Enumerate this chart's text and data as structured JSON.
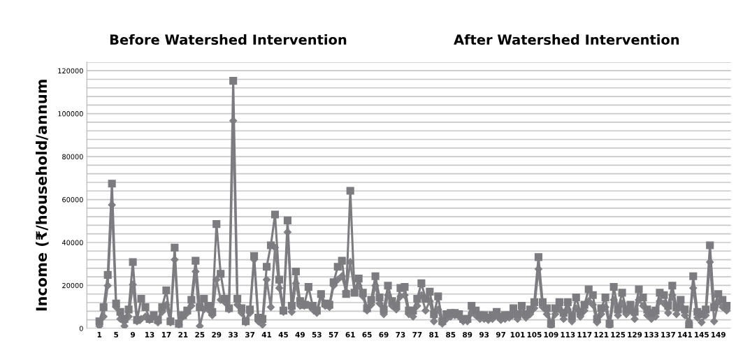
{
  "chart_data": {
    "type": "line",
    "annotations": [
      "Before Watershed Intervention",
      "After Watershed Intervention"
    ],
    "ylabel": "Income (₹/household/annum",
    "categories": [
      "1",
      null,
      null,
      null,
      "5",
      null,
      null,
      null,
      "9",
      null,
      null,
      null,
      "13",
      null,
      null,
      null,
      "17",
      null,
      null,
      null,
      "21",
      null,
      null,
      null,
      "25",
      null,
      null,
      null,
      "29",
      null,
      null,
      null,
      "33",
      null,
      null,
      null,
      "37",
      null,
      null,
      null,
      "41",
      null,
      null,
      null,
      "45",
      null,
      null,
      null,
      "49",
      null,
      null,
      null,
      "53",
      null,
      null,
      null,
      "57",
      null,
      null,
      null,
      "61",
      null,
      null,
      null,
      "65",
      null,
      null,
      null,
      "69",
      null,
      null,
      null,
      "73",
      null,
      null,
      null,
      "77",
      null,
      null,
      null,
      "81",
      null,
      null,
      null,
      "85",
      null,
      null,
      null,
      "89",
      null,
      null,
      null,
      "93",
      null,
      null,
      null,
      "97",
      null,
      null,
      null,
      "101",
      null,
      null,
      null,
      "105",
      null,
      null,
      null,
      "109",
      null,
      null,
      null,
      "113",
      null,
      null,
      null,
      "117",
      null,
      null,
      null,
      "121",
      null,
      null,
      null,
      "125",
      null,
      null,
      null,
      "129",
      null,
      null,
      null,
      "133",
      null,
      null,
      null,
      "137",
      null,
      null,
      null,
      "141",
      null,
      null,
      null,
      "145",
      null,
      null,
      null,
      "149",
      null,
      null
    ],
    "series": [
      {
        "color": "#828286",
        "marker": "diamond",
        "values": [
          1100,
          5500,
          19900,
          57500,
          9900,
          4400,
          1100,
          5500,
          20400,
          3300,
          4400,
          5500,
          3900,
          5500,
          2800,
          7700,
          11000,
          2800,
          32000,
          1700,
          5500,
          7200,
          10500,
          26500,
          1100,
          8800,
          8800,
          6100,
          22700,
          13300,
          12200,
          8800,
          96700,
          11000,
          7200,
          2800,
          7200,
          32000,
          3300,
          1700,
          22700,
          9900,
          37600,
          18800,
          7700,
          44800,
          7700,
          21000,
          10500,
          10500,
          11000,
          8800,
          7200,
          14900,
          10500,
          9900,
          19900,
          22700,
          24300,
          17100,
          30900,
          17100,
          19900,
          14900,
          8300,
          11000,
          19900,
          11600,
          6600,
          15500,
          10500,
          8800,
          14900,
          15500,
          6600,
          5500,
          10500,
          15500,
          8300,
          12700,
          3300,
          8800,
          2200,
          4400,
          5500,
          6100,
          5500,
          3300,
          3300,
          7200,
          6100,
          4400,
          4400,
          3900,
          4400,
          6100,
          3900,
          4400,
          5000,
          6600,
          4400,
          7200,
          5000,
          6600,
          9400,
          27600,
          9900,
          6600,
          1100,
          6600,
          8800,
          4400,
          8800,
          3300,
          9400,
          5500,
          8300,
          12700,
          11000,
          2800,
          6600,
          9900,
          1100,
          13300,
          6100,
          11600,
          6600,
          8300,
          4400,
          13300,
          10500,
          6100,
          4400,
          5500,
          12700,
          11600,
          7200,
          15500,
          6600,
          9900,
          6100,
          3300,
          18800,
          5000,
          2800,
          6100,
          30900,
          3300,
          12200,
          9900,
          8300
        ]
      },
      {
        "color": "#7c7c80",
        "marker": "square",
        "values": [
          3300,
          9900,
          24900,
          67400,
          11600,
          7700,
          4400,
          8800,
          30900,
          3900,
          13800,
          9900,
          4400,
          6100,
          3900,
          9900,
          17700,
          3300,
          37600,
          2200,
          6100,
          8300,
          13300,
          31500,
          9900,
          13800,
          10500,
          7700,
          48600,
          25400,
          13800,
          9400,
          115300,
          13800,
          9400,
          3300,
          8800,
          33700,
          5000,
          4400,
          28700,
          38700,
          53000,
          22700,
          8300,
          50300,
          10500,
          26500,
          12700,
          11000,
          19300,
          10500,
          8300,
          16000,
          11600,
          11000,
          21500,
          28700,
          31500,
          16000,
          64100,
          16600,
          23200,
          16600,
          9400,
          13300,
          24300,
          14400,
          8800,
          19900,
          12700,
          10500,
          18800,
          19300,
          8300,
          8300,
          13800,
          21000,
          13800,
          17100,
          6600,
          14900,
          3300,
          6600,
          7200,
          7200,
          6600,
          4400,
          4400,
          10500,
          8300,
          6100,
          6100,
          5000,
          6100,
          7700,
          5500,
          6100,
          6100,
          9400,
          6600,
          10500,
          6600,
          8800,
          12200,
          33200,
          12200,
          9400,
          2200,
          9400,
          12200,
          7200,
          12200,
          5500,
          14400,
          7700,
          11000,
          18200,
          15500,
          4400,
          9400,
          14400,
          2200,
          19300,
          8800,
          16600,
          8800,
          11000,
          7700,
          18200,
          14400,
          8800,
          7200,
          8300,
          16600,
          15500,
          10500,
          19900,
          9900,
          13300,
          8800,
          1100,
          24300,
          7700,
          6600,
          8800,
          38700,
          9900,
          16000,
          13300,
          10500
        ]
      }
    ],
    "ylim": [
      0,
      124000
    ],
    "yticks": [
      0,
      {
        "value": 4000,
        "label": null
      },
      {
        "value": 8000,
        "label": null
      },
      {
        "value": 12000,
        "label": null
      },
      {
        "value": 16000,
        "label": null
      },
      20000,
      {
        "value": 24000,
        "label": null
      },
      {
        "value": 28000,
        "label": null
      },
      {
        "value": 32000,
        "label": null
      },
      {
        "value": 36000,
        "label": null
      },
      40000,
      {
        "value": 44000,
        "label": null
      },
      {
        "value": 48000,
        "label": null
      },
      {
        "value": 52000,
        "label": null
      },
      {
        "value": 56000,
        "label": null
      },
      60000,
      {
        "value": 64000,
        "label": null
      },
      {
        "value": 68000,
        "label": null
      },
      {
        "value": 72000,
        "label": null
      },
      {
        "value": 76000,
        "label": null
      },
      80000,
      {
        "value": 84000,
        "label": null
      },
      {
        "value": 88000,
        "label": null
      },
      {
        "value": 92000,
        "label": null
      },
      {
        "value": 96000,
        "label": null
      },
      100000,
      {
        "value": 104000,
        "label": null
      },
      {
        "value": 108000,
        "label": null
      },
      {
        "value": 112000,
        "label": null
      },
      {
        "value": 116000,
        "label": null
      },
      120000,
      {
        "value": 124000,
        "label": null
      }
    ],
    "grid": "y",
    "legend": false
  }
}
